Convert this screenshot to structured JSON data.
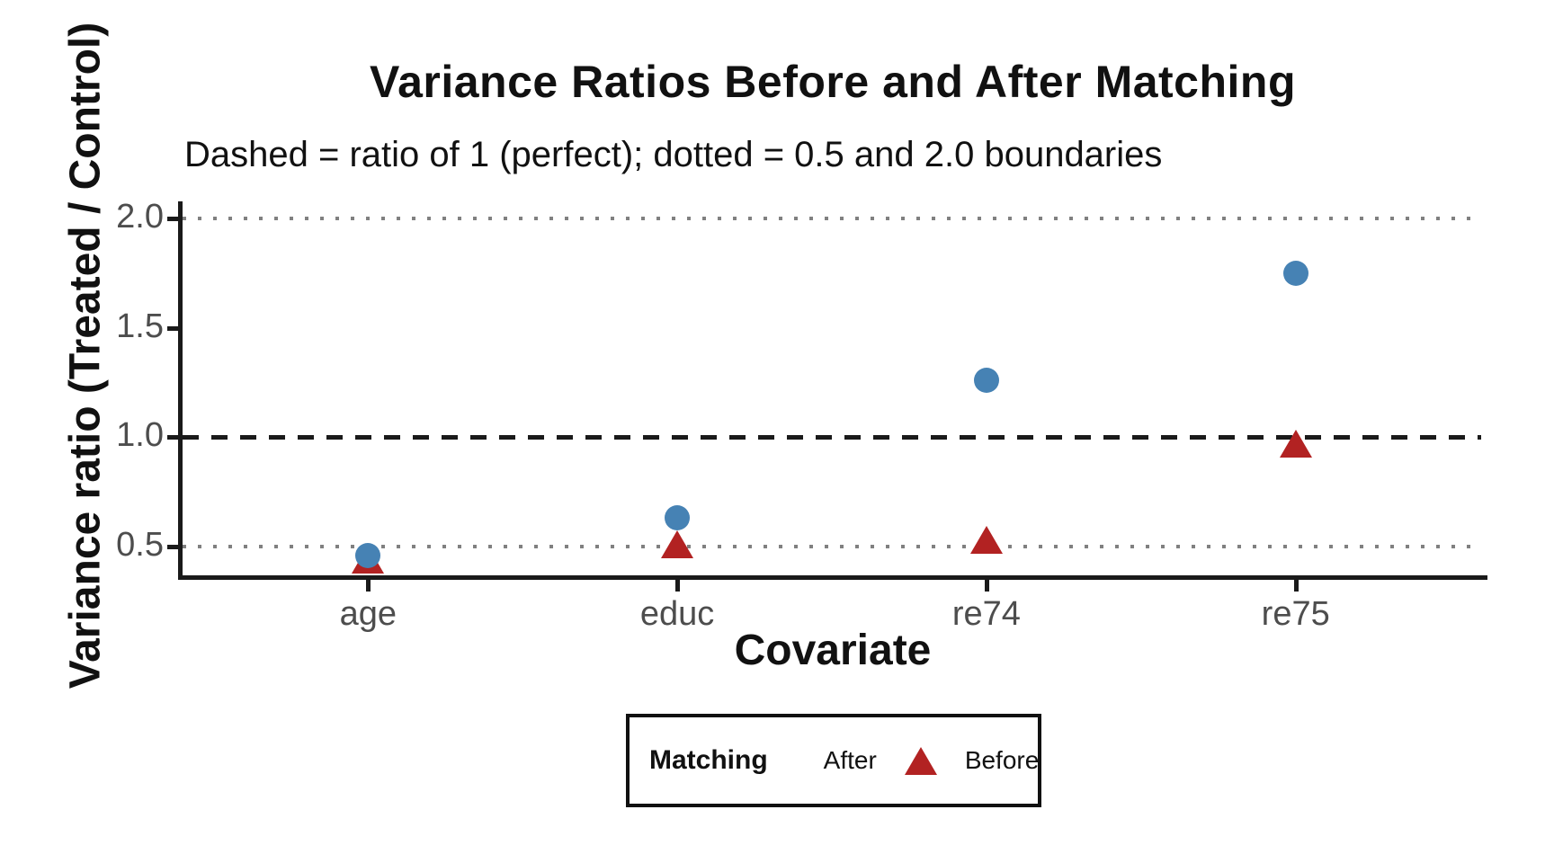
{
  "chart_data": {
    "type": "scatter",
    "title": "Variance Ratios Before and After Matching",
    "subtitle": "Dashed = ratio of 1 (perfect); dotted = 0.5 and 2.0 boundaries",
    "xlabel": "Covariate",
    "ylabel": "Variance ratio (Treated / Control)",
    "categories": [
      "age",
      "educ",
      "re74",
      "re75"
    ],
    "series": [
      {
        "name": "Before",
        "marker": "triangle",
        "color": "#B22222",
        "values": [
          0.44,
          0.51,
          0.53,
          0.97
        ]
      },
      {
        "name": "After",
        "marker": "circle",
        "color": "#4682B4",
        "values": [
          0.46,
          0.63,
          1.26,
          1.75
        ]
      }
    ],
    "y_axis": {
      "ticks": [
        {
          "value": 0.5,
          "label": "0.5"
        },
        {
          "value": 1.0,
          "label": "1.0"
        },
        {
          "value": 1.5,
          "label": "1.5"
        },
        {
          "value": 2.0,
          "label": "2.0"
        }
      ],
      "range": [
        0.36,
        2.07
      ]
    },
    "reference_lines": [
      {
        "y": 1.0,
        "style": "dashed",
        "color": "#1A1A1A"
      },
      {
        "y": 0.5,
        "style": "dotted",
        "color": "#808080"
      },
      {
        "y": 2.0,
        "style": "dotted",
        "color": "#808080"
      }
    ],
    "legend": {
      "title": "Matching",
      "position": "bottom",
      "entries": [
        {
          "label": "After",
          "marker": "circle",
          "color": "#4682B4"
        },
        {
          "label": "Before",
          "marker": "triangle",
          "color": "#B22222"
        }
      ]
    },
    "grid": "off"
  },
  "colors": {
    "background": "#FFFFFF",
    "axis_line": "#1A1A1A",
    "axis_text": "#4D4D4D",
    "title_text": "#111111",
    "after_blue": "#4682B4",
    "before_red": "#B22222",
    "dotted_gray": "#808080"
  }
}
